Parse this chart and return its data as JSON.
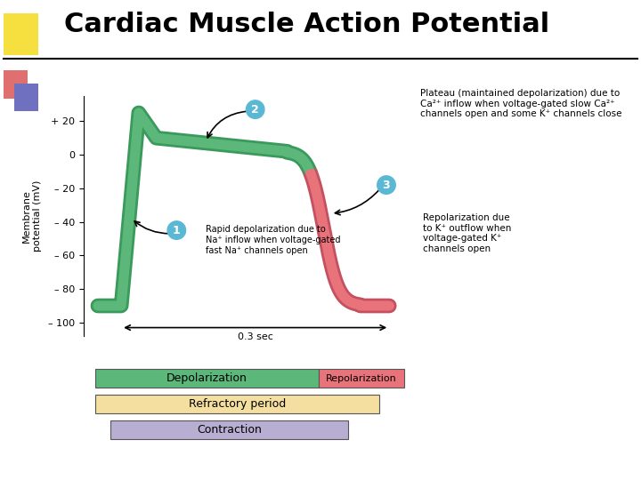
{
  "title": "Cardiac Muscle Action Potential",
  "title_fontsize": 22,
  "bg_color": "#ffffff",
  "ylabel": "Membrane\npotential (mV)",
  "yticks": [
    -100,
    -80,
    -60,
    -40,
    -20,
    0,
    20
  ],
  "ytick_labels": [
    "– 100",
    "– 80",
    "– 60",
    "– 40",
    "– 20",
    "0",
    "+ 20"
  ],
  "green_color": "#5cb87a",
  "green_dark": "#3a9a5c",
  "red_color": "#e8737a",
  "red_dark": "#c45060",
  "annotation_circle_color": "#5bb8d4",
  "annotation1_text": "Rapid depolarization due to\nNa⁺ inflow when voltage-gated\nfast Na⁺ channels open",
  "annotation2_text": "Plateau (maintained depolarization) due to\nCa²⁺ inflow when voltage-gated slow Ca²⁺\nchannels open and some K⁺ channels close",
  "annotation3_text": "Repolarization due\nto K⁺ outflow when\nvoltage-gated K⁺\nchannels open",
  "bar1_label": "Depolarization",
  "bar2_label": "Repolarization",
  "bar3_label": "Refractory period",
  "bar4_label": "Contraction",
  "bar1_color": "#5cb87a",
  "bar2_color": "#e8737a",
  "bar3_color": "#f5dfa0",
  "bar4_color": "#b8aed2",
  "time_label": "0.3 sec",
  "sq1_color": "#f5e040",
  "sq2_color": "#e07070",
  "sq3_color": "#7070c0"
}
